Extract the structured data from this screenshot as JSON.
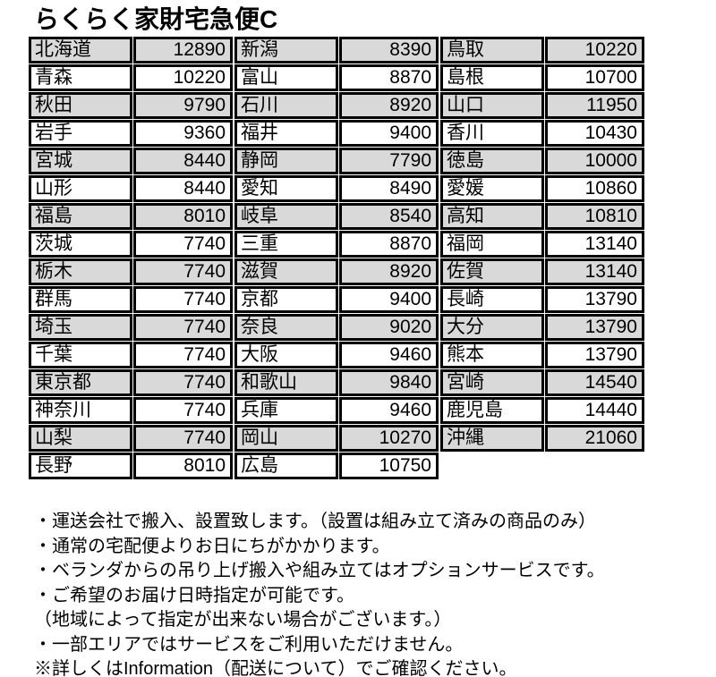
{
  "title": "らくらく家財宅急便C",
  "colors": {
    "shaded_row": "#d9d9d9",
    "border": "#000000",
    "background": "#ffffff",
    "text": "#000000"
  },
  "table": {
    "groups": [
      {
        "rows": [
          {
            "pref": "北海道",
            "price": 12890
          },
          {
            "pref": "青森",
            "price": 10220
          },
          {
            "pref": "秋田",
            "price": 9790
          },
          {
            "pref": "岩手",
            "price": 9360
          },
          {
            "pref": "宮城",
            "price": 8440
          },
          {
            "pref": "山形",
            "price": 8440
          },
          {
            "pref": "福島",
            "price": 8010
          },
          {
            "pref": "茨城",
            "price": 7740
          },
          {
            "pref": "栃木",
            "price": 7740
          },
          {
            "pref": "群馬",
            "price": 7740
          },
          {
            "pref": "埼玉",
            "price": 7740
          },
          {
            "pref": "千葉",
            "price": 7740
          },
          {
            "pref": "東京都",
            "price": 7740
          },
          {
            "pref": "神奈川",
            "price": 7740
          },
          {
            "pref": "山梨",
            "price": 7740
          },
          {
            "pref": "長野",
            "price": 8010
          }
        ]
      },
      {
        "rows": [
          {
            "pref": "新潟",
            "price": 8390
          },
          {
            "pref": "富山",
            "price": 8870
          },
          {
            "pref": "石川",
            "price": 8920
          },
          {
            "pref": "福井",
            "price": 9400
          },
          {
            "pref": "静岡",
            "price": 7790
          },
          {
            "pref": "愛知",
            "price": 8490
          },
          {
            "pref": "岐阜",
            "price": 8540
          },
          {
            "pref": "三重",
            "price": 8870
          },
          {
            "pref": "滋賀",
            "price": 8920
          },
          {
            "pref": "京都",
            "price": 9400
          },
          {
            "pref": "奈良",
            "price": 9020
          },
          {
            "pref": "大阪",
            "price": 9460
          },
          {
            "pref": "和歌山",
            "price": 9840
          },
          {
            "pref": "兵庫",
            "price": 9460
          },
          {
            "pref": "岡山",
            "price": 10270
          },
          {
            "pref": "広島",
            "price": 10750
          }
        ]
      },
      {
        "rows": [
          {
            "pref": "鳥取",
            "price": 10220
          },
          {
            "pref": "島根",
            "price": 10700
          },
          {
            "pref": "山口",
            "price": 11950
          },
          {
            "pref": "香川",
            "price": 10430
          },
          {
            "pref": "徳島",
            "price": 10000
          },
          {
            "pref": "愛媛",
            "price": 10860
          },
          {
            "pref": "高知",
            "price": 10810
          },
          {
            "pref": "福岡",
            "price": 13140
          },
          {
            "pref": "佐賀",
            "price": 13140
          },
          {
            "pref": "長崎",
            "price": 13790
          },
          {
            "pref": "大分",
            "price": 13790
          },
          {
            "pref": "熊本",
            "price": 13790
          },
          {
            "pref": "宮崎",
            "price": 14540
          },
          {
            "pref": "鹿児島",
            "price": 14440
          },
          {
            "pref": "沖縄",
            "price": 21060
          }
        ]
      }
    ]
  },
  "notes": {
    "lines": [
      "・運送会社で搬入、設置致します。（設置は組み立て済みの商品のみ）",
      "・通常の宅配便よりお日にちがかかります。",
      "・ベランダからの吊り上げ搬入や組み立てはオプションサービスです。",
      "・ご希望のお届け日時指定が可能です。",
      "（地域によって指定が出来ない場合がございます。）",
      "・一部エリアではサービスをご利用いただけません。",
      "※詳しくはInformation（配送について）でご確認ください。"
    ]
  }
}
